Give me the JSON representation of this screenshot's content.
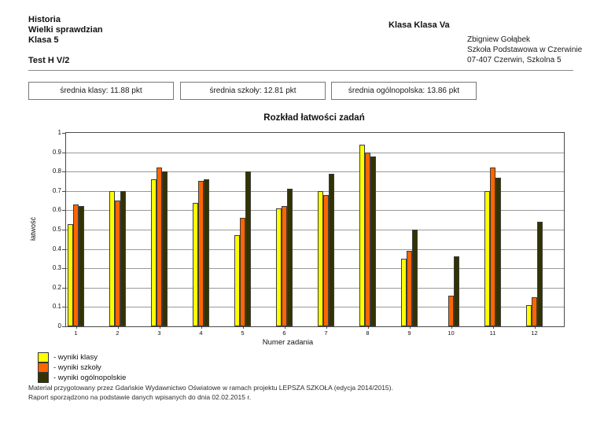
{
  "header": {
    "subject": "Historia",
    "exam": "Wielki sprawdzian",
    "grade": "Klasa 5",
    "test_id": "Test H V/2",
    "class_label": "Klasa Klasa Va",
    "teacher": "Zbigniew Gołąbek",
    "school": "Szkoła Podstawowa w Czerwinie",
    "address": "07-407 Czerwin, Szkolna 5"
  },
  "stats": {
    "class_avg": "średnia klasy: 11.88 pkt",
    "school_avg": "średnia szkoły: 12.81 pkt",
    "national_avg": "średnia ogólnopolska: 13.86 pkt"
  },
  "chart_data": {
    "type": "bar",
    "title": "Rozkład łatwości zadań",
    "xlabel": "Numer zadania",
    "ylabel": "łatwość",
    "ylim": [
      0,
      1
    ],
    "ytick_step": 0.1,
    "grid": true,
    "legend_position": "bottom-left",
    "categories": [
      "1",
      "2",
      "3",
      "4",
      "5",
      "6",
      "7",
      "8",
      "9",
      "10",
      "11",
      "12"
    ],
    "series": [
      {
        "name": "wyniki klasy",
        "legend_label": "- wyniki klasy",
        "color": "#ffff00",
        "values": [
          0.53,
          0.7,
          0.76,
          0.64,
          0.47,
          0.61,
          0.7,
          0.94,
          0.35,
          0.0,
          0.7,
          0.11
        ]
      },
      {
        "name": "wyniki szkoły",
        "legend_label": "- wyniki szkoły",
        "color": "#ff6600",
        "values": [
          0.63,
          0.65,
          0.82,
          0.75,
          0.56,
          0.62,
          0.68,
          0.9,
          0.39,
          0.16,
          0.82,
          0.15
        ]
      },
      {
        "name": "wyniki ogólnopolskie",
        "legend_label": "- wyniki ogólnopolskie",
        "color": "#333300",
        "values": [
          0.62,
          0.7,
          0.8,
          0.76,
          0.8,
          0.71,
          0.79,
          0.88,
          0.5,
          0.36,
          0.77,
          0.54
        ]
      }
    ]
  },
  "footer": {
    "line1": "Materiał przygotowany przez Gdańskie Wydawnictwo Oświatowe w ramach projektu LEPSZA SZKOŁA (edycja 2014/2015).",
    "line2": "Raport sporządzono na podstawie danych wpisanych do dnia 02.02.2015 r."
  }
}
